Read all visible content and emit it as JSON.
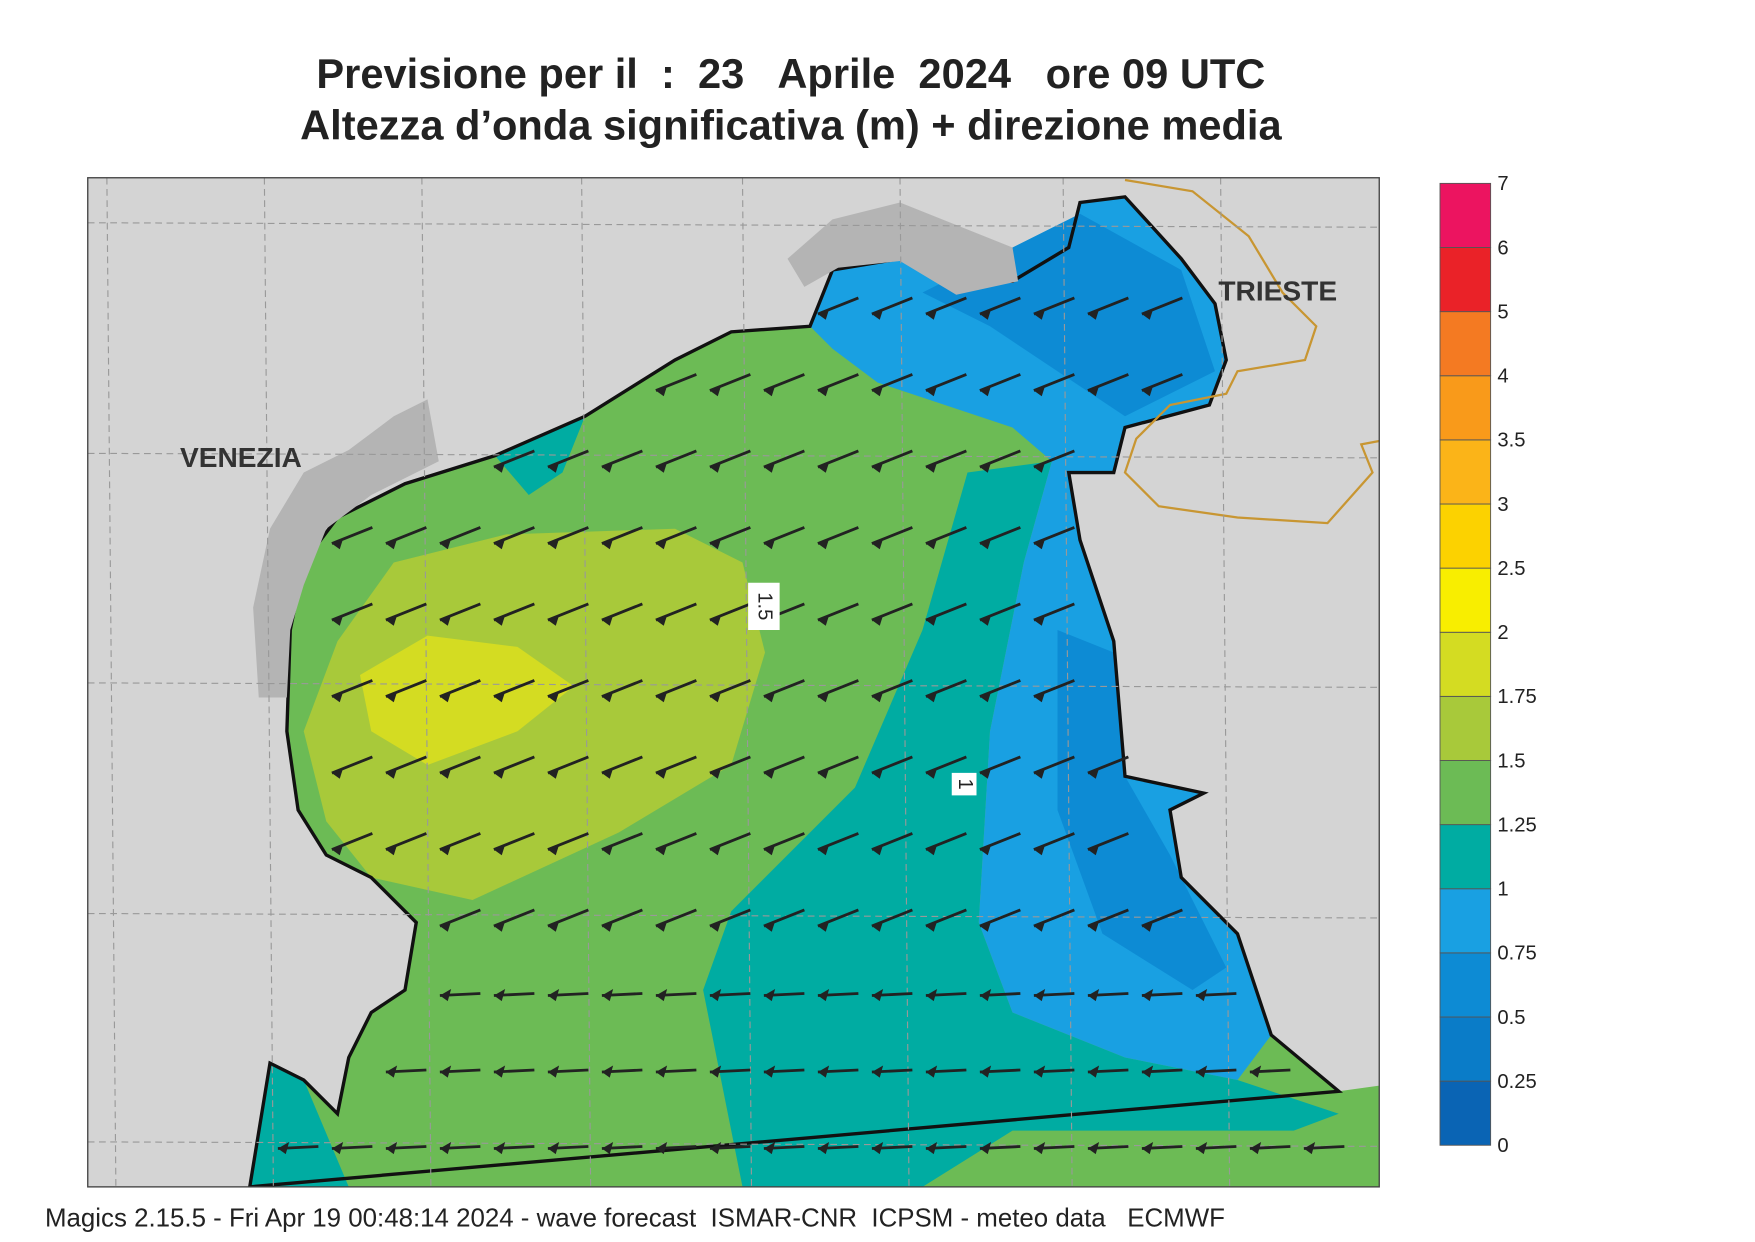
{
  "header": {
    "title": "Previsione per il  :  23   Aprile  2024   ore 09 UTC",
    "subtitle": "Altezza d’onda significativa (m) + direzione media"
  },
  "map": {
    "place_labels": [
      "VENEZIA",
      "TRIESTE"
    ],
    "contour_labels": [
      "1.5",
      "1"
    ]
  },
  "legend": {
    "levels": [
      0,
      0.25,
      0.5,
      0.75,
      1,
      1.25,
      1.5,
      1.75,
      2,
      2.5,
      3,
      3.5,
      4,
      5,
      6,
      7
    ],
    "colors": [
      "#0a64b4",
      "#0a7cc8",
      "#0d8bd4",
      "#19a0e2",
      "#00aca2",
      "#6cbb55",
      "#a8c93a",
      "#d4dc22",
      "#f8ee00",
      "#fcd200",
      "#fbb418",
      "#f99a1a",
      "#f47a22",
      "#ea2228",
      "#ec1460"
    ]
  },
  "footer": "Magics 2.15.5 - Fri Apr 19 00:48:14 2024 - wave forecast  ISMAR-CNR  ICPSM - meteo data   ECMWF"
}
